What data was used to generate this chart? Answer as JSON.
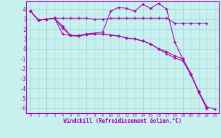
{
  "xlabel": "Windchill (Refroidissement éolien,°C)",
  "background_color": "#c8f0ee",
  "grid_color": "#a8dcd8",
  "line_color": "#aa00aa",
  "tick_color": "#aa00aa",
  "spine_color": "#aa00aa",
  "xlim": [
    -0.5,
    23.5
  ],
  "ylim": [
    -6.5,
    4.8
  ],
  "xticks": [
    0,
    1,
    2,
    3,
    4,
    5,
    6,
    7,
    8,
    9,
    10,
    11,
    12,
    13,
    14,
    15,
    16,
    17,
    18,
    19,
    20,
    21,
    22,
    23
  ],
  "yticks": [
    -6,
    -5,
    -4,
    -3,
    -2,
    -1,
    0,
    1,
    2,
    3,
    4
  ],
  "series1_x": [
    0,
    1,
    2,
    3,
    4,
    5,
    6,
    7,
    8,
    9,
    10,
    11,
    12,
    13,
    14,
    15,
    16,
    17,
    18,
    19,
    20,
    21,
    22
  ],
  "series1_y": [
    3.8,
    2.9,
    3.0,
    3.1,
    3.1,
    3.1,
    3.1,
    3.1,
    3.0,
    3.0,
    3.1,
    3.1,
    3.1,
    3.1,
    3.1,
    3.1,
    3.1,
    3.1,
    2.6,
    2.6,
    2.6,
    2.6,
    2.6
  ],
  "series2_x": [
    0,
    1,
    2,
    3,
    4,
    5,
    6,
    7,
    8,
    9,
    10,
    11,
    12,
    13,
    14,
    15,
    16,
    17,
    18,
    19,
    20,
    21,
    22,
    23
  ],
  "series2_y": [
    3.8,
    2.9,
    3.0,
    3.1,
    1.5,
    1.35,
    1.35,
    1.5,
    1.6,
    1.7,
    3.8,
    4.2,
    4.1,
    3.8,
    4.5,
    4.1,
    4.6,
    4.0,
    0.7,
    -1.0,
    -2.5,
    -4.3,
    -5.85,
    -6.1
  ],
  "series3_x": [
    0,
    1,
    2,
    3,
    4,
    5,
    6,
    7,
    8,
    9,
    10,
    11,
    12,
    13,
    14,
    15,
    16,
    17,
    18,
    19,
    20,
    21,
    22
  ],
  "series3_y": [
    3.8,
    2.9,
    3.0,
    3.1,
    2.1,
    1.35,
    1.3,
    1.45,
    1.5,
    1.5,
    1.4,
    1.3,
    1.1,
    1.0,
    0.8,
    0.5,
    0.0,
    -0.5,
    -0.9,
    -1.2,
    -2.6,
    -4.4,
    -6.0
  ],
  "series4_x": [
    0,
    1,
    2,
    3,
    4,
    5,
    6,
    7,
    8,
    9,
    10,
    11,
    12,
    13,
    14,
    15,
    16,
    17,
    18,
    19,
    20,
    21,
    22
  ],
  "series4_y": [
    3.8,
    2.9,
    3.0,
    3.1,
    2.3,
    1.35,
    1.3,
    1.45,
    1.5,
    1.5,
    1.4,
    1.3,
    1.1,
    1.0,
    0.8,
    0.5,
    0.0,
    -0.3,
    -0.7,
    -1.0,
    -2.5,
    -4.4,
    -6.0
  ]
}
